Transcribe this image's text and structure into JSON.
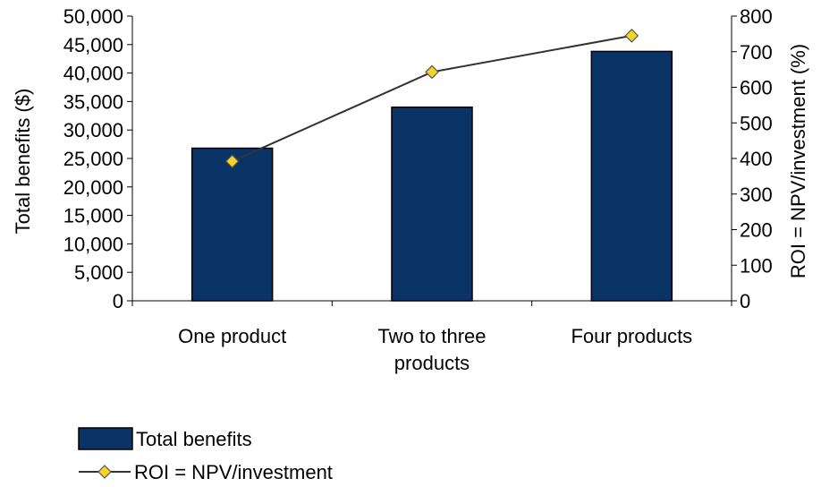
{
  "chart_data": {
    "type": "bar",
    "categories": [
      "One product",
      "Two to three products",
      "Four products"
    ],
    "category_lines": [
      [
        "One product"
      ],
      [
        "Two to three",
        "products"
      ],
      [
        "Four products"
      ]
    ],
    "series": [
      {
        "name": "Total benefits",
        "type": "bar",
        "axis": "left",
        "values": [
          26800,
          34000,
          43800
        ]
      },
      {
        "name": "ROI = NPV/investment",
        "type": "line",
        "axis": "right",
        "values": [
          392,
          643,
          745
        ]
      }
    ],
    "ylabel": "Total benefits ($)",
    "y2label": "ROI = NPV/investment (%)",
    "ylim": [
      0,
      50000
    ],
    "y2lim": [
      0,
      800
    ],
    "yticks": [
      "0",
      "5,000",
      "10,000",
      "15,000",
      "20,000",
      "25,000",
      "30,000",
      "35,000",
      "40,000",
      "45,000",
      "50,000"
    ],
    "y2ticks": [
      "0",
      "100",
      "200",
      "300",
      "400",
      "500",
      "600",
      "700",
      "800"
    ],
    "grid": false,
    "legend_position": "bottom-left",
    "colors": {
      "bar_fill": "#0a3366",
      "bar_stroke": "#000000",
      "line": "#333333",
      "marker_fill": "#f5d327",
      "marker_stroke": "#555555"
    }
  }
}
